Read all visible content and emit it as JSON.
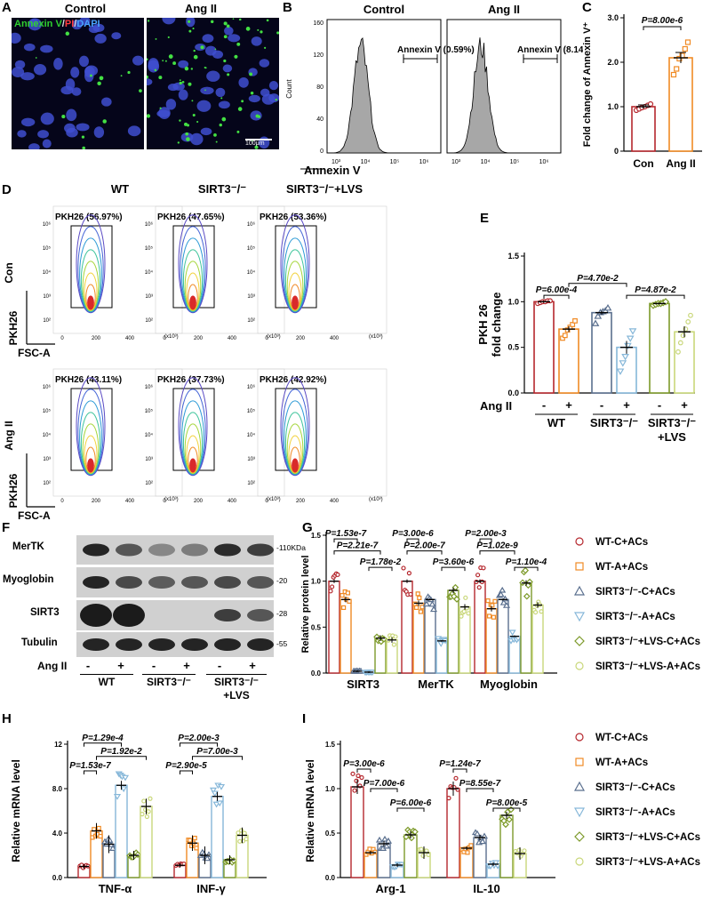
{
  "panels": {
    "A": "A",
    "B": "B",
    "C": "C",
    "D": "D",
    "E": "E",
    "F": "F",
    "G": "G",
    "H": "H",
    "I": "I"
  },
  "panel_a": {
    "stain_annexin": "Annexin V",
    "stain_pi": "PI",
    "stain_dapi": "DAPI",
    "slash1": "/",
    "slash2": "/",
    "titles": [
      "Control",
      "Ang II"
    ],
    "scale": "100μm"
  },
  "panel_b": {
    "titles": [
      "Control",
      "Ang II"
    ],
    "gates": [
      "Annexin V (0.59%)",
      "Annexin V (8.14%)"
    ],
    "xlabel": "Annexin V",
    "ylabel": "Count",
    "yticks": [
      "0",
      "40",
      "80",
      "120",
      "160"
    ],
    "xticks": [
      "10³",
      "10⁴",
      "10⁵",
      "10⁶"
    ]
  },
  "panel_d": {
    "columns": [
      "WT",
      "SIRT3⁻/⁻",
      "SIRT3⁻/⁻+LVS"
    ],
    "rows": [
      "Con",
      "Ang II"
    ],
    "gates": [
      [
        "PKH26 (56.97%)",
        "PKH26 (47.65%)",
        "PKH26 (53.36%)"
      ],
      [
        "PKH26 (43.11%)",
        "PKH26 (37.73%)",
        "PKH26 (42.92%)"
      ]
    ],
    "ylabel": "PKH26",
    "xlabel": "FSC-A",
    "xunit": "(x10³)",
    "ticks_y": [
      "10²",
      "10³",
      "10⁴",
      "10⁵",
      "10⁶"
    ],
    "ticks_x": [
      "0",
      "200",
      "400"
    ]
  },
  "panel_f": {
    "bands": [
      "MerTK",
      "Myoglobin",
      "SIRT3",
      "Tubulin"
    ],
    "kda": [
      "-110KDa",
      "-20",
      "-28",
      "-55"
    ],
    "treat_label": "Ang II",
    "signs": [
      "-",
      "+",
      "-",
      "+",
      "-",
      "+"
    ],
    "groups": [
      "WT",
      "SIRT3⁻/⁻",
      "SIRT3⁻/⁻",
      "+LVS"
    ]
  },
  "legend_groups": [
    "WT-C+ACs",
    "WT-A+ACs",
    "SIRT3⁻/⁻-C+ACs",
    "SIRT3⁻/⁻-A+ACs",
    "SIRT3⁻/⁻+LVS-C+ACs",
    "SIRT3⁻/⁻+LVS-A+ACs"
  ],
  "colors": [
    "#b5272d",
    "#f08a24",
    "#5a6f8e",
    "#86b7d9",
    "#7d9a2a",
    "#c9d77a"
  ],
  "chart_data": [
    {
      "id": "C",
      "type": "bar",
      "categories": [
        "Con",
        "Ang II"
      ],
      "values": [
        1.0,
        2.1
      ],
      "points": [
        [
          0.92,
          0.95,
          0.98,
          1.0,
          1.03,
          1.06
        ],
        [
          1.72,
          1.85,
          2.08,
          2.15,
          2.3,
          2.45
        ]
      ],
      "errors": [
        0.04,
        0.12
      ],
      "ylabel": "Fold change of Annexin V⁺",
      "ylim": [
        0,
        3.0
      ],
      "yticks": [
        "0",
        "1.0",
        "2.0",
        "3.0"
      ],
      "annotations": [
        {
          "text": "P=8.00e-6",
          "from": 0,
          "to": 1,
          "level": 2.8
        }
      ]
    },
    {
      "id": "E",
      "type": "bar",
      "categories": [
        "WT -",
        "WT +",
        "SIRT3⁻/⁻ -",
        "SIRT3⁻/⁻ +",
        "SIRT3⁻/⁻+LVS -",
        "SIRT3⁻/⁻+LVS +"
      ],
      "values": [
        1.0,
        0.7,
        0.88,
        0.5,
        0.98,
        0.67
      ],
      "points": [
        [
          0.98,
          0.99,
          1.0,
          1.0,
          1.01,
          1.01
        ],
        [
          0.6,
          0.63,
          0.69,
          0.72,
          0.75,
          0.79
        ],
        [
          0.76,
          0.84,
          0.88,
          0.89,
          0.9,
          0.93
        ],
        [
          0.24,
          0.33,
          0.4,
          0.52,
          0.6,
          0.68
        ],
        [
          0.96,
          0.97,
          0.98,
          0.98,
          0.99,
          1.0
        ],
        [
          0.45,
          0.55,
          0.63,
          0.7,
          0.78,
          0.85
        ]
      ],
      "errors": [
        0.01,
        0.03,
        0.02,
        0.07,
        0.01,
        0.06
      ],
      "ylabel": "PKH 26",
      "ylabel2": "fold change",
      "ylim": [
        0,
        1.5
      ],
      "yticks": [
        "0.0",
        "0.5",
        "1.0",
        "1.5"
      ],
      "xsigns": [
        "-",
        "+",
        "-",
        "+",
        "-",
        "+"
      ],
      "treat": "Ang II",
      "groups": [
        "WT",
        "SIRT3⁻/⁻",
        "SIRT3⁻/⁻",
        "+LVS"
      ],
      "annotations": [
        {
          "text": "P=6.00e-4",
          "from": 0,
          "to": 1,
          "level": 1.07
        },
        {
          "text": "P=4.70e-2",
          "from": 1,
          "to": 3,
          "level": 1.2
        },
        {
          "text": "P=4.87e-2",
          "from": 3,
          "to": 5,
          "level": 1.07
        }
      ]
    },
    {
      "id": "G",
      "type": "bar",
      "categories": [
        "SIRT3",
        "MerTK",
        "Myoglobin"
      ],
      "series": [
        {
          "name": "WT-C+ACs",
          "values": [
            1.0,
            1.0,
            1.0
          ]
        },
        {
          "name": "WT-A+ACs",
          "values": [
            0.8,
            0.76,
            0.7
          ]
        },
        {
          "name": "SIRT3⁻/⁻-C+ACs",
          "values": [
            0.02,
            0.8,
            0.8
          ]
        },
        {
          "name": "SIRT3⁻/⁻-A+ACs",
          "values": [
            0.01,
            0.35,
            0.4
          ]
        },
        {
          "name": "SIRT3⁻/⁻+LVS-C+ACs",
          "values": [
            0.38,
            0.9,
            0.98
          ]
        },
        {
          "name": "SIRT3⁻/⁻+LVS-A+ACs",
          "values": [
            0.36,
            0.72,
            0.74
          ]
        }
      ],
      "errors": [
        0.02,
        0.03,
        0.01,
        0.01,
        0.03,
        0.03
      ],
      "ylabel": "Relative protein level",
      "ylim": [
        0,
        1.5
      ],
      "yticks": [
        "0.0",
        "0.5",
        "1.0",
        "1.5"
      ],
      "annotations": [
        {
          "text": "P=1.53e-7",
          "cat": 0,
          "from": 0,
          "to": 2,
          "level": 1.46
        },
        {
          "text": "P=2.21e-7",
          "cat": 0,
          "from": 0,
          "to": 4,
          "level": 1.33
        },
        {
          "text": "P=1.78e-2",
          "cat": 0,
          "from": 3,
          "to": 5,
          "level": 1.15
        },
        {
          "text": "P=3.00e-6",
          "cat": 1,
          "from": 0,
          "to": 1,
          "level": 1.46
        },
        {
          "text": "P=2.00e-7",
          "cat": 1,
          "from": 0,
          "to": 3,
          "level": 1.33
        },
        {
          "text": "P=3.60e-6",
          "cat": 1,
          "from": 3,
          "to": 5,
          "level": 1.15
        },
        {
          "text": "P=2.00e-3",
          "cat": 2,
          "from": 0,
          "to": 1,
          "level": 1.46
        },
        {
          "text": "P=1.02e-9",
          "cat": 2,
          "from": 0,
          "to": 3,
          "level": 1.33
        },
        {
          "text": "P=1.10e-4",
          "cat": 2,
          "from": 3,
          "to": 5,
          "level": 1.15
        }
      ]
    },
    {
      "id": "H",
      "type": "bar",
      "categories": [
        "TNF-α",
        "INF-γ"
      ],
      "series": [
        {
          "name": "WT-C+ACs",
          "values": [
            1.0,
            1.1
          ]
        },
        {
          "name": "WT-A+ACs",
          "values": [
            4.2,
            3.1
          ]
        },
        {
          "name": "SIRT3⁻/⁻-C+ACs",
          "values": [
            3.0,
            2.0
          ]
        },
        {
          "name": "SIRT3⁻/⁻-A+ACs",
          "values": [
            8.3,
            7.3
          ]
        },
        {
          "name": "SIRT3⁻/⁻+LVS-C+ACs",
          "values": [
            2.0,
            1.6
          ]
        },
        {
          "name": "SIRT3⁻/⁻+LVS-A+ACs",
          "values": [
            6.4,
            3.8
          ]
        }
      ],
      "errors": [
        0.2,
        0.7,
        0.8,
        0.4,
        0.4,
        0.7
      ],
      "ylabel": "Relative mRNA level",
      "ylim": [
        0,
        12
      ],
      "yticks": [
        "0.0",
        "4.0",
        "8.0",
        "12"
      ],
      "annotations": [
        {
          "text": "P=1.53e-7",
          "cat": 0,
          "from": 0,
          "to": 1,
          "level": 9.6
        },
        {
          "text": "P=1.92e-2",
          "cat": 0,
          "from": 1,
          "to": 5,
          "level": 10.9
        },
        {
          "text": "P=1.29e-4",
          "cat": 0,
          "from": 0,
          "to": 3,
          "level": 12.1
        },
        {
          "text": "P=2.90e-5",
          "cat": 1,
          "from": 0,
          "to": 1,
          "level": 9.6
        },
        {
          "text": "P=7.00e-3",
          "cat": 1,
          "from": 1,
          "to": 5,
          "level": 10.9
        },
        {
          "text": "P=2.00e-3",
          "cat": 1,
          "from": 0,
          "to": 3,
          "level": 12.1
        }
      ]
    },
    {
      "id": "I",
      "type": "bar",
      "categories": [
        "Arg-1",
        "IL-10"
      ],
      "series": [
        {
          "name": "WT-C+ACs",
          "values": [
            1.02,
            1.0
          ]
        },
        {
          "name": "WT-A+ACs",
          "values": [
            0.28,
            0.33
          ]
        },
        {
          "name": "SIRT3⁻/⁻-C+ACs",
          "values": [
            0.38,
            0.45
          ]
        },
        {
          "name": "SIRT3⁻/⁻-A+ACs",
          "values": [
            0.14,
            0.15
          ]
        },
        {
          "name": "SIRT3⁻/⁻+LVS-C+ACs",
          "values": [
            0.48,
            0.7
          ]
        },
        {
          "name": "SIRT3⁻/⁻+LVS-A+ACs",
          "values": [
            0.28,
            0.27
          ]
        }
      ],
      "errors": [
        0.08,
        0.02,
        0.03,
        0.02,
        0.04,
        0.07
      ],
      "ylabel": "Relative mRNA level",
      "ylim": [
        0,
        1.5
      ],
      "yticks": [
        "0.0",
        "0.5",
        "1.0",
        "1.5"
      ],
      "annotations": [
        {
          "text": "P=3.00e-6",
          "cat": 0,
          "from": 0,
          "to": 1,
          "level": 1.22
        },
        {
          "text": "P=7.00e-6",
          "cat": 0,
          "from": 1,
          "to": 3,
          "level": 1.0
        },
        {
          "text": "P=6.00e-6",
          "cat": 0,
          "from": 3,
          "to": 5,
          "level": 0.78
        },
        {
          "text": "P=1.24e-7",
          "cat": 1,
          "from": 0,
          "to": 1,
          "level": 1.22
        },
        {
          "text": "P=8.55e-7",
          "cat": 1,
          "from": 1,
          "to": 3,
          "level": 1.0
        },
        {
          "text": "P=8.00e-5",
          "cat": 1,
          "from": 3,
          "to": 5,
          "level": 0.78
        }
      ]
    }
  ]
}
